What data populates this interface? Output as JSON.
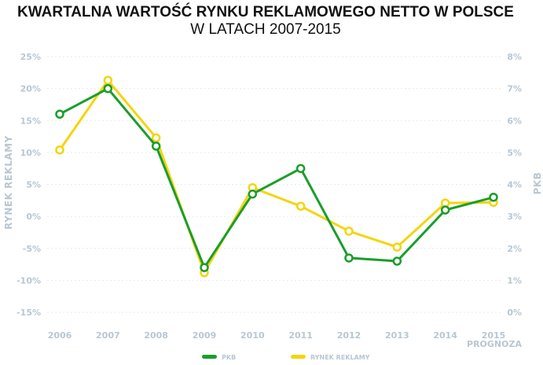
{
  "chart_data": {
    "type": "line",
    "title": "KWARTALNA WARTOŚĆ RYNKU REKLAMOWEGO NETTO W POLSCE",
    "subtitle": "W LATACH 2007-2015",
    "x": [
      "2006",
      "2007",
      "2008",
      "2009",
      "2010",
      "2011",
      "2012",
      "2013",
      "2014",
      "2015"
    ],
    "x_annotation": {
      "category": "2015",
      "text": "PROGNOZA"
    },
    "y_left": {
      "label": "RYNEK REKLAMY",
      "ticks": [
        "25%",
        "20%",
        "15%",
        "10%",
        "5%",
        "0%",
        "-5%",
        "-10%",
        "-15%"
      ],
      "range": [
        -15,
        25
      ]
    },
    "y_right": {
      "label": "PKB",
      "ticks": [
        "8%",
        "7%",
        "6%",
        "5%",
        "4%",
        "3%",
        "2%",
        "1%",
        "0%"
      ],
      "range": [
        0,
        8
      ]
    },
    "series": [
      {
        "name": "PKB",
        "color": "#1a9e2a",
        "axis": "right",
        "values": [
          6.2,
          7.0,
          5.2,
          1.4,
          3.7,
          4.5,
          1.7,
          1.6,
          3.2,
          3.6
        ]
      },
      {
        "name": "RYNEK REKLAMY",
        "color": "#f5d40f",
        "axis": "left",
        "values": [
          10.4,
          21.3,
          12.3,
          -8.8,
          4.5,
          1.6,
          -2.3,
          -4.8,
          2.1,
          2.2
        ]
      }
    ],
    "legend": "bottom",
    "grid": true
  }
}
